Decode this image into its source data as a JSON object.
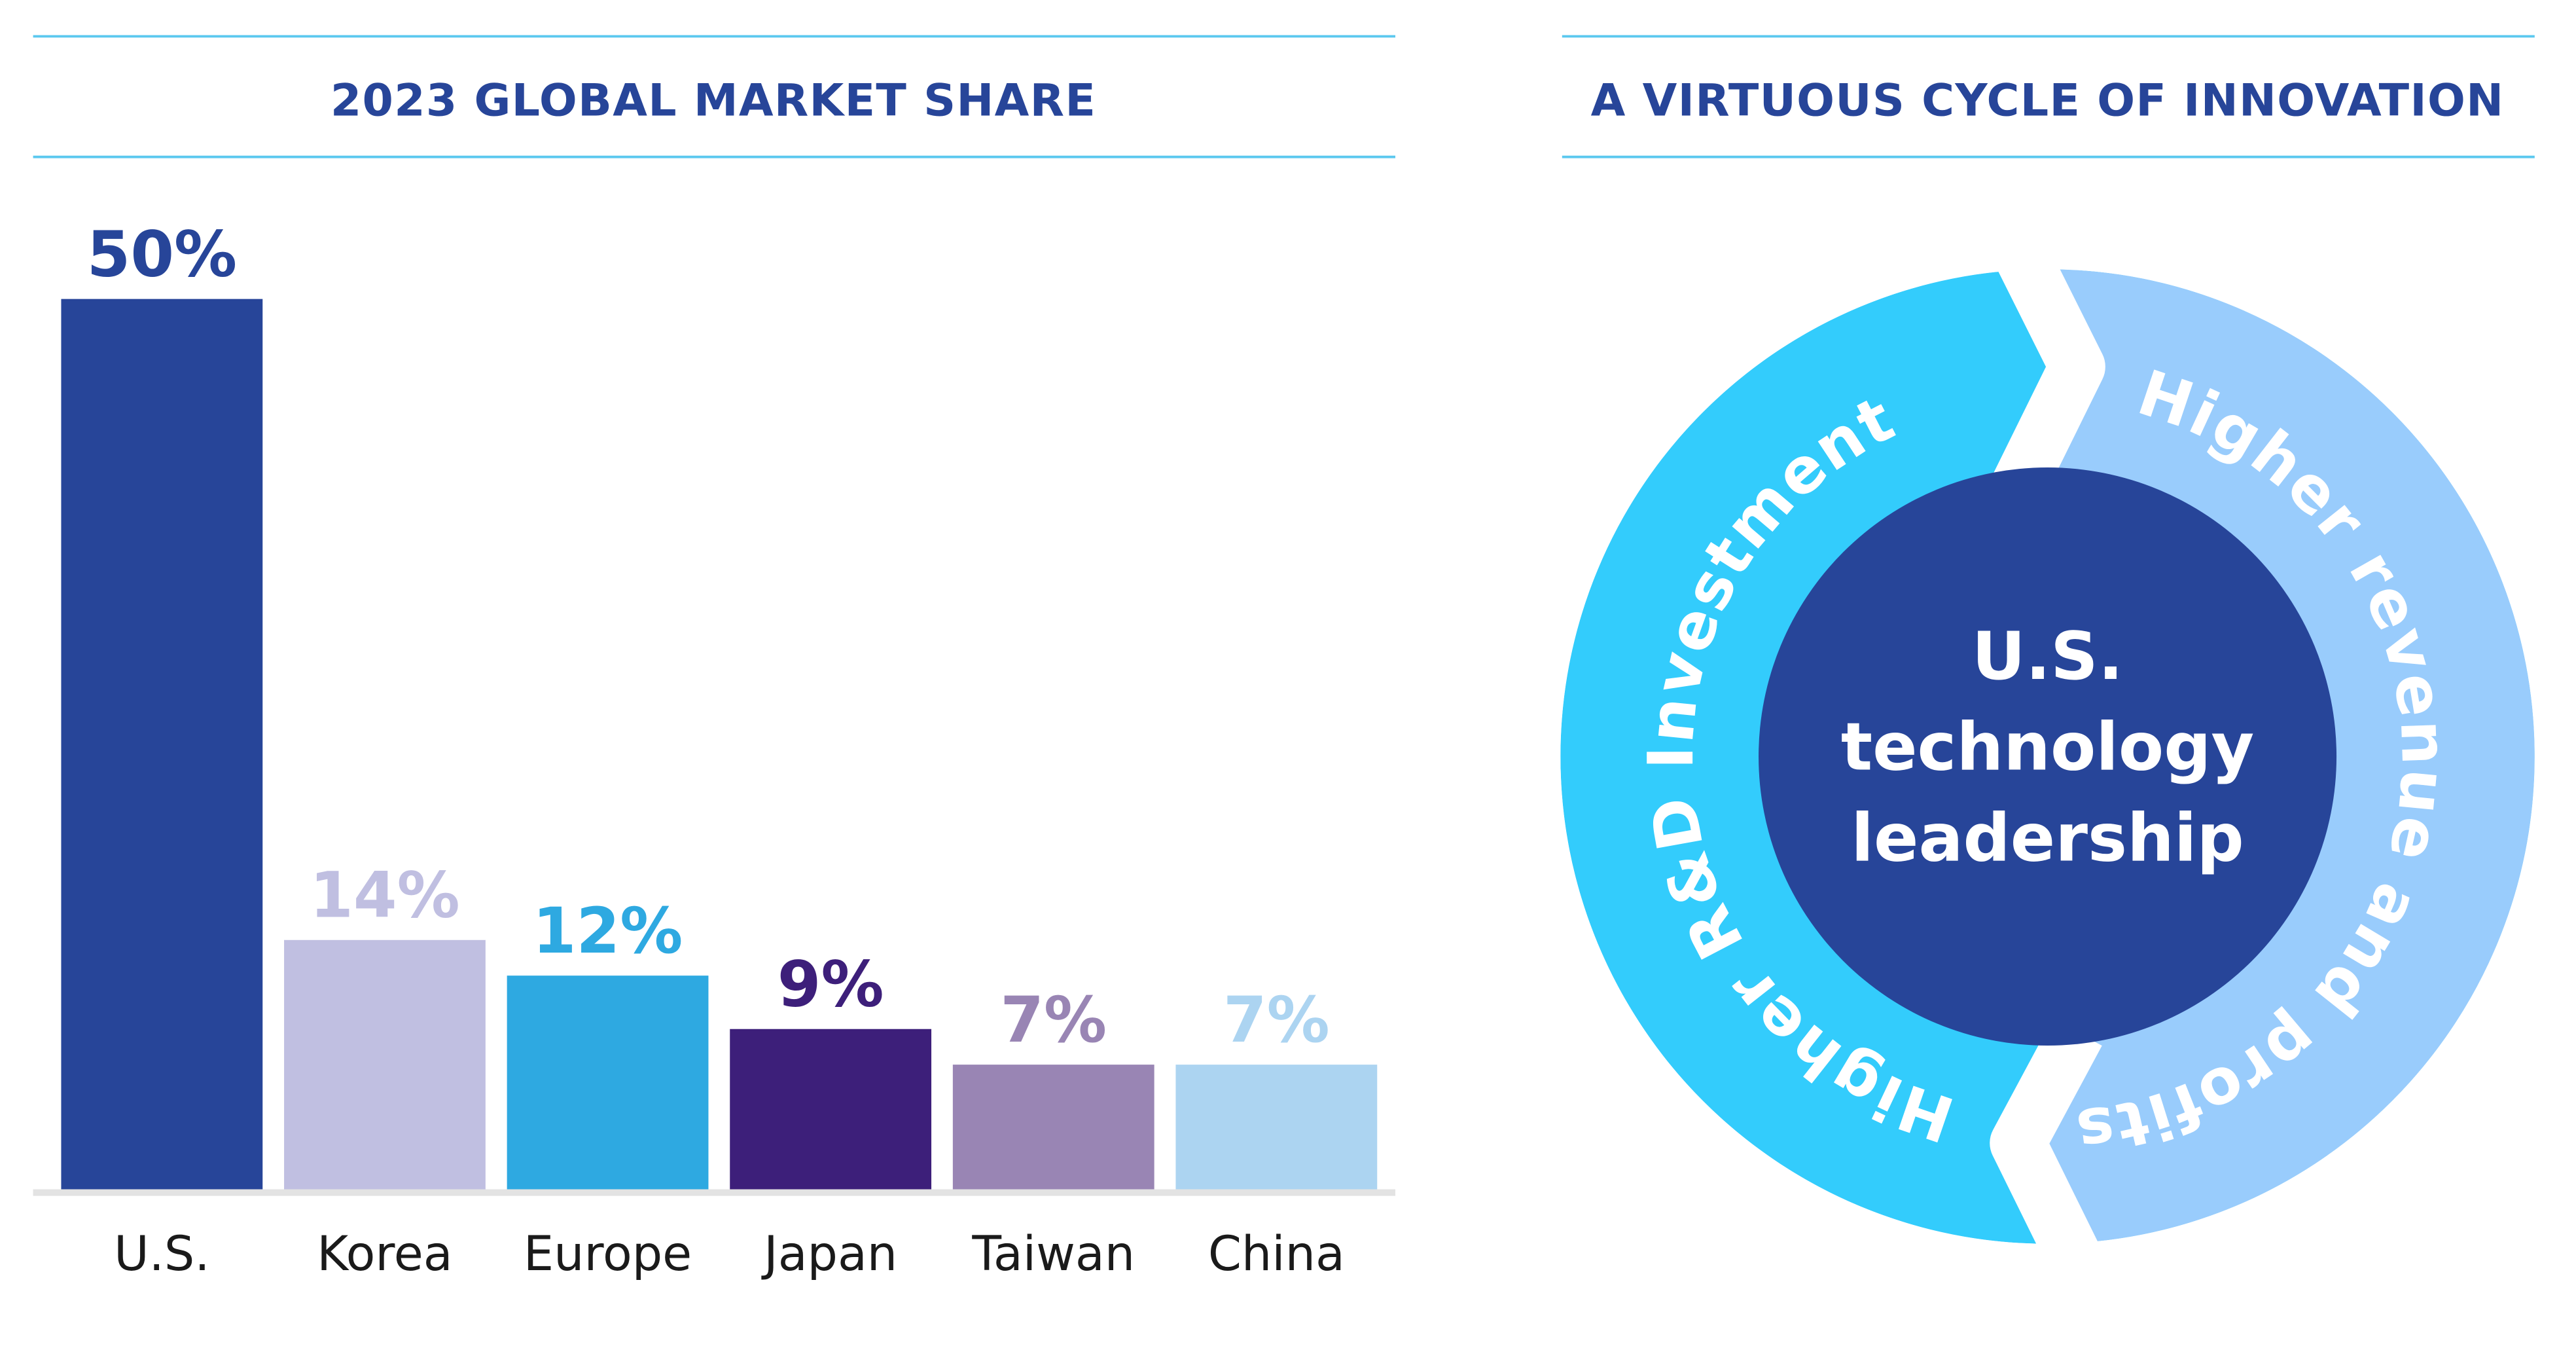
{
  "chart_data": {
    "type": "bar",
    "title": "2023 GLOBAL MARKET SHARE",
    "categories": [
      "U.S.",
      "Korea",
      "Europe",
      "Japan",
      "Taiwan",
      "China"
    ],
    "values": [
      50,
      14,
      12,
      9,
      7,
      7
    ],
    "value_labels": [
      "50%",
      "14%",
      "12%",
      "9%",
      "7%",
      "7%"
    ],
    "unit": "%",
    "ylim": [
      0,
      50
    ],
    "grid": false,
    "colors": [
      "#274599",
      "#c0bfe1",
      "#2ea9e1",
      "#3d1f7a",
      "#9985b4",
      "#acd4f1"
    ]
  },
  "diagram": {
    "title": "A VIRTUOUS CYCLE OF INNOVATION",
    "center_lines": [
      "U.S.",
      "technology",
      "leadership"
    ],
    "left_segment": "Higher R&D Investment",
    "right_segment": "Higher revenue and profits",
    "colors": {
      "center": "#274599",
      "left_segment": "#33ccfc",
      "right_segment": "#99ccfc",
      "rule": "#5bc8ef"
    }
  }
}
